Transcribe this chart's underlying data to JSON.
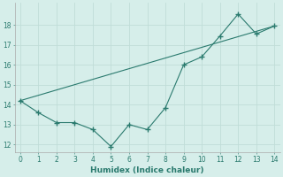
{
  "title": "",
  "xlabel": "Humidex (Indice chaleur)",
  "ylabel": "",
  "background_color": "#d6eeea",
  "line_color": "#2a7a6e",
  "grid_color": "#c0ddd8",
  "line1_x": [
    0,
    1,
    2,
    3,
    4,
    5,
    6,
    7,
    8,
    9,
    10,
    11,
    12,
    13,
    14
  ],
  "line1_y": [
    14.2,
    13.6,
    13.1,
    13.1,
    12.75,
    11.9,
    13.0,
    12.75,
    13.85,
    16.0,
    16.4,
    17.45,
    18.55,
    17.55,
    17.95
  ],
  "line2_x": [
    0,
    14
  ],
  "line2_y": [
    14.2,
    17.95
  ],
  "xlim": [
    -0.3,
    14.3
  ],
  "ylim": [
    11.6,
    19.1
  ],
  "yticks": [
    12,
    13,
    14,
    15,
    16,
    17,
    18
  ],
  "xticks": [
    0,
    1,
    2,
    3,
    4,
    5,
    6,
    7,
    8,
    9,
    10,
    11,
    12,
    13,
    14
  ],
  "marker": "+",
  "markersize": 4,
  "markeredgewidth": 1.0,
  "linewidth": 0.8,
  "tick_fontsize": 5.5,
  "xlabel_fontsize": 6.5
}
